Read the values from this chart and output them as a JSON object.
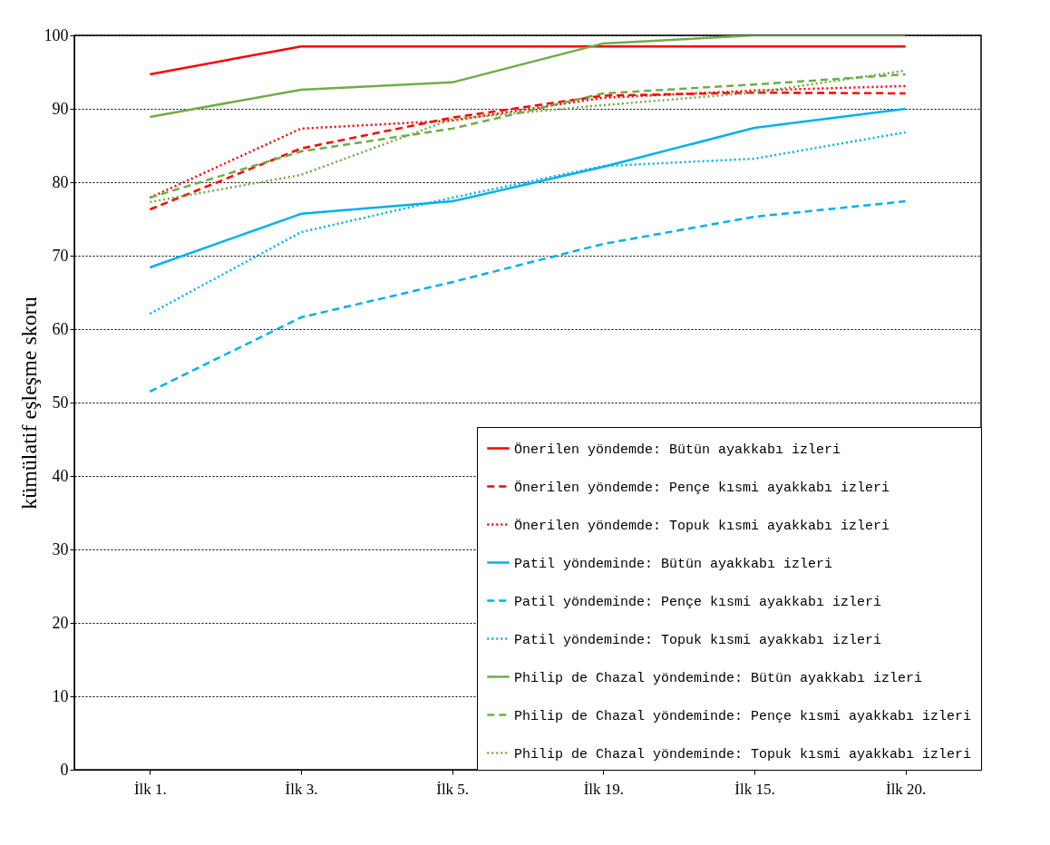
{
  "chart_data": {
    "type": "line",
    "ylabel": "kümülatif eşleşme skoru",
    "categories": [
      "İlk 1.",
      "İlk 3.",
      "İlk 5.",
      "İlk 19.",
      "İlk 15.",
      "İlk 20."
    ],
    "ylim": [
      0,
      100
    ],
    "yticks": [
      0,
      10,
      20,
      30,
      40,
      50,
      60,
      70,
      80,
      90,
      100
    ],
    "grid": "y",
    "legend": "bottom right",
    "series": [
      {
        "name": "Önerilen yöndemde: Bütün ayakkabı izleri",
        "color": "#ff0000",
        "line_style": "solid",
        "values": [
          94.7,
          98.5,
          98.5,
          98.5,
          98.5,
          98.5
        ]
      },
      {
        "name": "Önerilen yöndemde: Pençe kısmi ayakkabı izleri",
        "color": "#ff0000",
        "line_style": "dashed",
        "values": [
          76.3,
          84.6,
          88.8,
          91.8,
          92.2,
          92.1
        ]
      },
      {
        "name": "Önerilen yöndemde: Topuk kısmi ayakkabı izleri",
        "color": "#ff0000",
        "line_style": "dotted",
        "values": [
          77.9,
          87.3,
          88.4,
          91.5,
          92.5,
          93.1
        ]
      },
      {
        "name": "Patil yöndeminde: Bütün ayakkabı izleri",
        "color": "#00b0f0",
        "line_style": "solid",
        "values": [
          68.4,
          75.7,
          77.4,
          82.1,
          87.4,
          90.0
        ]
      },
      {
        "name": "Patil yöndeminde: Pençe kısmi ayakkabı izleri",
        "color": "#00b0f0",
        "line_style": "dashed",
        "values": [
          51.5,
          61.6,
          66.4,
          71.6,
          75.3,
          77.4
        ]
      },
      {
        "name": "Patil yöndeminde: Topuk kısmi ayakkabı izleri",
        "color": "#00b0f0",
        "line_style": "dotted",
        "values": [
          62.1,
          73.2,
          77.9,
          82.2,
          83.2,
          86.8
        ]
      },
      {
        "name": "Philip de Chazal yöndeminde: Bütün ayakkabı izleri",
        "color": "#70ad47",
        "line_style": "solid",
        "values": [
          88.9,
          92.6,
          93.6,
          98.9,
          100,
          100
        ]
      },
      {
        "name": "Philip de Chazal yöndeminde: Pençe kısmi ayakkabı izleri",
        "color": "#70ad47",
        "line_style": "dashed",
        "values": [
          77.9,
          84.2,
          87.3,
          92.1,
          93.3,
          94.7
        ]
      },
      {
        "name": "Philip de Chazal yöndeminde: Topuk kısmi ayakkabı izleri",
        "color": "#70ad47",
        "line_style": "dotted",
        "values": [
          77.3,
          81.0,
          88.6,
          90.5,
          92.2,
          95.2
        ]
      }
    ]
  }
}
